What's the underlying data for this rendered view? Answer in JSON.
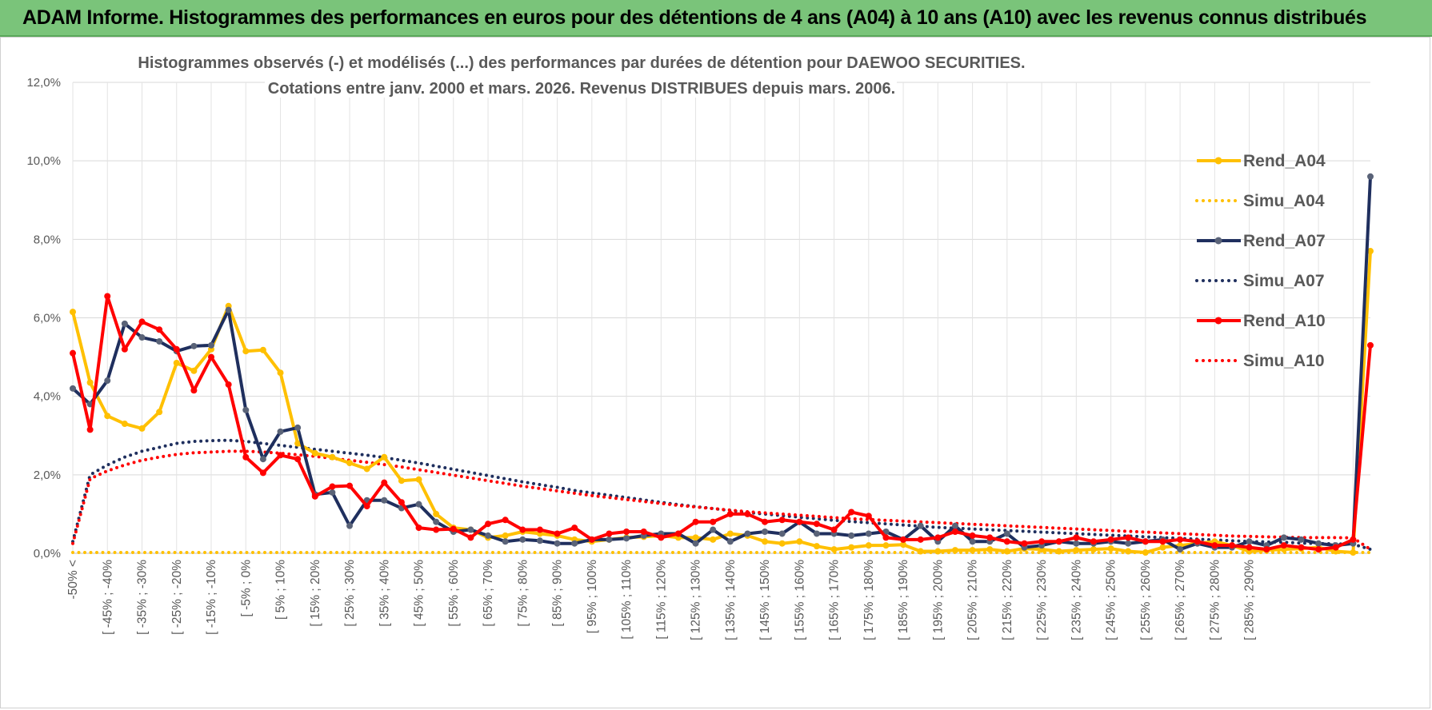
{
  "banner": {
    "title": "ADAM Informe. Histogrammes des performances en euros pour des détentions de 4 ans (A04) à 10 ans (A10) avec les revenus connus distribués"
  },
  "chart_data": {
    "type": "line",
    "title_line1": "Histogrammes observés (-) et modélisés (...) des performances par durées de détention pour DAEWOO SECURITIES.",
    "title_line2": "Cotations entre janv. 2000 et mars. 2026.  Revenus DISTRIBUES depuis mars. 2006.",
    "ylim": [
      0,
      12
    ],
    "yticks": [
      "0,0%",
      "2,0%",
      "4,0%",
      "6,0%",
      "8,0%",
      "10,0%",
      "12,0%"
    ],
    "ytick_values": [
      0,
      2,
      4,
      6,
      8,
      10,
      12
    ],
    "xtick_labels": [
      "-50% <",
      "[ -45% ; -40%",
      "[ -35% ; -30%",
      "[ -25% ; -20%",
      "[ -15% ; -10%",
      "[ -5% ; 0%",
      "[ 5% ; 10%",
      "[ 15% ; 20%",
      "[ 25% ; 30%",
      "[ 35% ; 40%",
      "[ 45% ; 50%",
      "[ 55% ; 60%",
      "[ 65% ; 70%",
      "[ 75% ; 80%",
      "[ 85% ; 90%",
      "[ 95% ; 100%",
      "[ 105% ; 110%",
      "[ 115% ; 120%",
      "[ 125% ; 130%",
      "[ 135% ; 140%",
      "[ 145% ; 150%",
      "[ 155% ; 160%",
      "[ 165% ; 170%",
      "[ 175% ; 180%",
      "[ 185% ; 190%",
      "[ 195% ; 200%",
      "[ 205% ; 210%",
      "[ 215% ; 220%",
      "[ 225% ; 230%",
      "[ 235% ; 240%",
      "[ 245% ; 250%",
      "[ 255% ; 260%",
      "[ 265% ; 270%",
      "[ 275% ; 280%",
      "[ 285% ; 290%"
    ],
    "grid": true,
    "legend_position": "right",
    "series": [
      {
        "name": "Rend_A04",
        "style": "solid",
        "color": "#ffc000",
        "values": [
          6.15,
          4.35,
          3.5,
          3.3,
          3.18,
          3.6,
          4.85,
          4.65,
          5.2,
          6.3,
          5.15,
          5.18,
          4.6,
          2.8,
          2.55,
          2.45,
          2.3,
          2.15,
          2.45,
          1.85,
          1.88,
          1.0,
          0.65,
          0.6,
          0.4,
          0.45,
          0.55,
          0.5,
          0.45,
          0.35,
          0.3,
          0.35,
          0.4,
          0.42,
          0.45,
          0.4,
          0.4,
          0.35,
          0.5,
          0.45,
          0.3,
          0.25,
          0.3,
          0.18,
          0.1,
          0.15,
          0.2,
          0.2,
          0.22,
          0.05,
          0.05,
          0.08,
          0.08,
          0.1,
          0.05,
          0.12,
          0.1,
          0.05,
          0.08,
          0.1,
          0.12,
          0.05,
          0.02,
          0.15,
          0.2,
          0.25,
          0.3,
          0.2,
          0.05,
          0.08,
          0.1,
          0.12,
          0.15,
          0.05,
          0.02,
          7.7
        ]
      },
      {
        "name": "Simu_A04",
        "style": "dotted",
        "color": "#ffc000",
        "values": [
          0.02,
          0.02,
          0.02,
          0.02,
          0.02,
          0.02,
          0.02,
          0.02,
          0.02,
          0.02,
          0.02,
          0.02,
          0.02,
          0.02,
          0.02,
          0.02,
          0.02,
          0.02,
          0.02,
          0.02,
          0.02,
          0.02,
          0.02,
          0.02,
          0.02,
          0.02,
          0.02,
          0.02,
          0.02,
          0.02,
          0.02,
          0.02,
          0.02,
          0.02,
          0.02,
          0.02,
          0.02,
          0.02,
          0.02,
          0.02,
          0.02,
          0.02,
          0.02,
          0.02,
          0.02,
          0.02,
          0.02,
          0.02,
          0.02,
          0.02,
          0.02,
          0.02,
          0.02,
          0.02,
          0.02,
          0.02,
          0.02,
          0.02,
          0.02,
          0.02,
          0.02,
          0.02,
          0.02,
          0.02,
          0.02,
          0.02,
          0.02,
          0.02,
          0.02,
          0.02,
          0.02,
          0.02,
          0.02,
          0.02,
          0.02,
          0.02
        ]
      },
      {
        "name": "Rend_A07",
        "style": "solid",
        "color": "#1f2f5e",
        "values": [
          4.2,
          3.8,
          4.4,
          5.85,
          5.5,
          5.4,
          5.15,
          5.28,
          5.3,
          6.2,
          3.65,
          2.4,
          3.1,
          3.2,
          1.5,
          1.55,
          0.7,
          1.35,
          1.35,
          1.15,
          1.25,
          0.8,
          0.55,
          0.6,
          0.45,
          0.3,
          0.35,
          0.32,
          0.25,
          0.25,
          0.35,
          0.35,
          0.38,
          0.45,
          0.5,
          0.5,
          0.25,
          0.6,
          0.3,
          0.5,
          0.55,
          0.5,
          0.8,
          0.5,
          0.5,
          0.45,
          0.5,
          0.55,
          0.35,
          0.7,
          0.3,
          0.7,
          0.3,
          0.3,
          0.5,
          0.15,
          0.2,
          0.3,
          0.25,
          0.25,
          0.3,
          0.25,
          0.3,
          0.35,
          0.1,
          0.25,
          0.15,
          0.15,
          0.3,
          0.2,
          0.4,
          0.35,
          0.25,
          0.2,
          0.25,
          9.6
        ]
      },
      {
        "name": "Simu_A07",
        "style": "dotted",
        "color": "#1f2f5e",
        "values": [
          0.3,
          2.0,
          2.25,
          2.45,
          2.6,
          2.7,
          2.8,
          2.85,
          2.87,
          2.88,
          2.85,
          2.8,
          2.75,
          2.7,
          2.65,
          2.6,
          2.55,
          2.5,
          2.44,
          2.37,
          2.3,
          2.22,
          2.14,
          2.06,
          1.98,
          1.9,
          1.82,
          1.75,
          1.68,
          1.6,
          1.54,
          1.48,
          1.42,
          1.36,
          1.3,
          1.24,
          1.19,
          1.14,
          1.09,
          1.04,
          1.0,
          0.96,
          0.92,
          0.88,
          0.84,
          0.81,
          0.78,
          0.75,
          0.72,
          0.69,
          0.66,
          0.64,
          0.62,
          0.6,
          0.58,
          0.56,
          0.54,
          0.52,
          0.5,
          0.48,
          0.46,
          0.44,
          0.42,
          0.4,
          0.38,
          0.36,
          0.34,
          0.32,
          0.3,
          0.29,
          0.28,
          0.26,
          0.25,
          0.24,
          0.23,
          0.1
        ]
      },
      {
        "name": "Rend_A10",
        "style": "solid",
        "color": "#ff0000",
        "values": [
          5.1,
          3.15,
          6.55,
          5.2,
          5.9,
          5.7,
          5.2,
          4.15,
          5.0,
          4.3,
          2.45,
          2.05,
          2.5,
          2.4,
          1.45,
          1.7,
          1.72,
          1.2,
          1.8,
          1.3,
          0.65,
          0.6,
          0.62,
          0.4,
          0.75,
          0.85,
          0.6,
          0.6,
          0.5,
          0.65,
          0.35,
          0.5,
          0.55,
          0.55,
          0.4,
          0.5,
          0.8,
          0.8,
          1.0,
          1.0,
          0.8,
          0.85,
          0.8,
          0.75,
          0.6,
          1.05,
          0.95,
          0.4,
          0.35,
          0.35,
          0.4,
          0.55,
          0.45,
          0.4,
          0.3,
          0.25,
          0.3,
          0.3,
          0.4,
          0.3,
          0.35,
          0.4,
          0.3,
          0.3,
          0.35,
          0.3,
          0.2,
          0.2,
          0.15,
          0.1,
          0.2,
          0.15,
          0.1,
          0.15,
          0.35,
          5.3
        ]
      },
      {
        "name": "Simu_A10",
        "style": "dotted",
        "color": "#ff0000",
        "values": [
          0.25,
          1.9,
          2.1,
          2.25,
          2.37,
          2.45,
          2.52,
          2.56,
          2.58,
          2.6,
          2.6,
          2.58,
          2.55,
          2.51,
          2.47,
          2.42,
          2.37,
          2.32,
          2.26,
          2.2,
          2.13,
          2.06,
          1.99,
          1.92,
          1.85,
          1.78,
          1.71,
          1.65,
          1.59,
          1.53,
          1.47,
          1.42,
          1.37,
          1.32,
          1.27,
          1.22,
          1.18,
          1.14,
          1.1,
          1.06,
          1.03,
          1.0,
          0.97,
          0.94,
          0.91,
          0.88,
          0.86,
          0.84,
          0.82,
          0.8,
          0.78,
          0.76,
          0.74,
          0.72,
          0.7,
          0.68,
          0.66,
          0.64,
          0.62,
          0.6,
          0.58,
          0.56,
          0.54,
          0.52,
          0.5,
          0.48,
          0.46,
          0.44,
          0.43,
          0.42,
          0.41,
          0.4,
          0.4,
          0.4,
          0.39,
          0.1
        ]
      }
    ]
  }
}
